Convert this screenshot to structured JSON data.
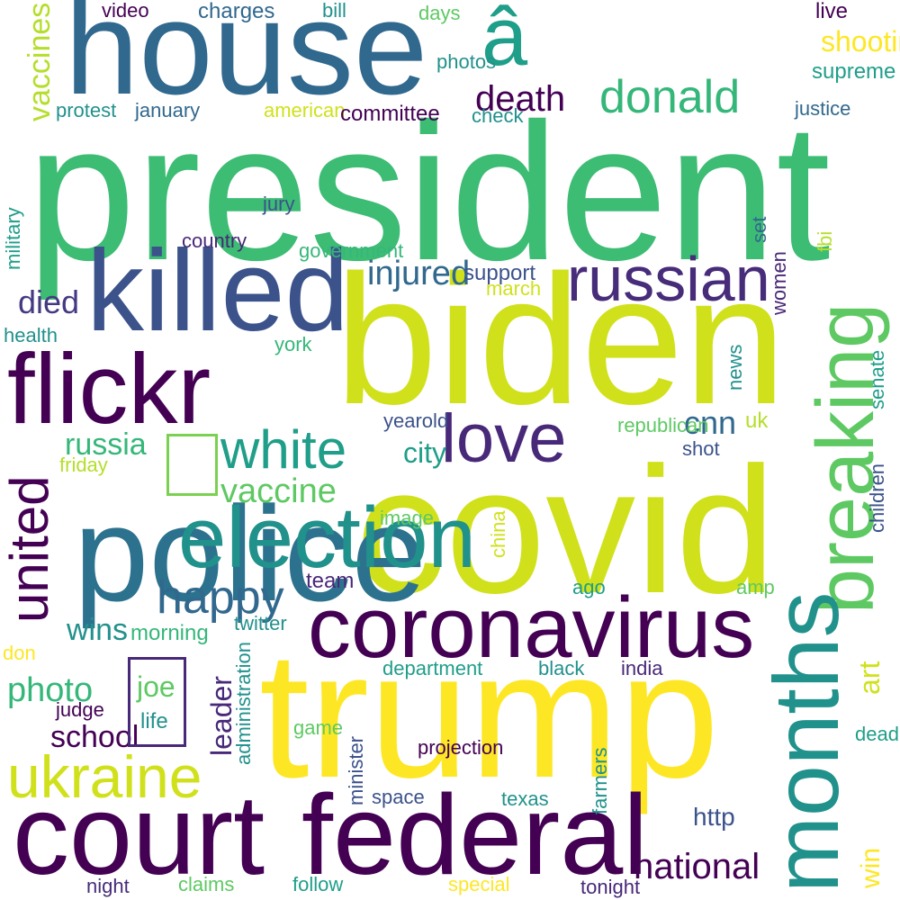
{
  "words": [
    {
      "text": "president",
      "color": "#3dbc74"
    },
    {
      "text": "biden",
      "color": "#d0e11c"
    },
    {
      "text": "covid",
      "color": "#d0e11c"
    },
    {
      "text": "trump",
      "color": "#fde725"
    },
    {
      "text": "house",
      "color": "#31688e"
    },
    {
      "text": "court",
      "color": "#440154"
    },
    {
      "text": "federal",
      "color": "#440154"
    },
    {
      "text": "coronavirus",
      "color": "#440154"
    },
    {
      "text": "killed",
      "color": "#3b528b"
    },
    {
      "text": "flickr",
      "color": "#440154"
    },
    {
      "text": "police",
      "color": "#2c728e"
    },
    {
      "text": "â",
      "color": "#1f9e89"
    },
    {
      "text": "election",
      "color": "#21918c"
    },
    {
      "text": "ukraine",
      "color": "#d0e11c"
    },
    {
      "text": "love",
      "color": "#482878"
    },
    {
      "text": "russian",
      "color": "#472c7a"
    },
    {
      "text": "white",
      "color": "#1f9e89"
    },
    {
      "text": "donald",
      "color": "#35b779"
    },
    {
      "text": "happy",
      "color": "#31688e"
    },
    {
      "text": "vaccine",
      "color": "#5ec962"
    },
    {
      "text": "russia",
      "color": "#35b779"
    },
    {
      "text": "photo",
      "color": "#35b779"
    },
    {
      "text": "national",
      "color": "#440154"
    },
    {
      "text": "death",
      "color": "#440154"
    },
    {
      "text": "injured",
      "color": "#31688e"
    },
    {
      "text": "shooting",
      "color": "#fde725"
    },
    {
      "text": "cnn",
      "color": "#31688e"
    },
    {
      "text": "wins",
      "color": "#21918c"
    },
    {
      "text": "school",
      "color": "#440154"
    },
    {
      "text": "died",
      "color": "#443a83"
    },
    {
      "text": "joe",
      "color": "#5ec962"
    },
    {
      "text": "city",
      "color": "#1f9e89"
    },
    {
      "text": "life",
      "color": "#21918c"
    },
    {
      "text": "http",
      "color": "#3b528b"
    },
    {
      "text": "live",
      "color": "#440154"
    },
    {
      "text": "supreme",
      "color": "#1f9e89"
    },
    {
      "text": "video",
      "color": "#440154"
    },
    {
      "text": "charges",
      "color": "#31688e"
    },
    {
      "text": "bill",
      "color": "#21918c"
    },
    {
      "text": "days",
      "color": "#5ec962"
    },
    {
      "text": "photos",
      "color": "#21918c"
    },
    {
      "text": "protest",
      "color": "#21918c"
    },
    {
      "text": "january",
      "color": "#31688e"
    },
    {
      "text": "american",
      "color": "#d0e11c"
    },
    {
      "text": "committee",
      "color": "#440154"
    },
    {
      "text": "check",
      "color": "#21918c"
    },
    {
      "text": "justice",
      "color": "#31688e"
    },
    {
      "text": "jury",
      "color": "#3b528b"
    },
    {
      "text": "country",
      "color": "#482878"
    },
    {
      "text": "government",
      "color": "#35b779"
    },
    {
      "text": "support",
      "color": "#3b528b"
    },
    {
      "text": "march",
      "color": "#d0e11c"
    },
    {
      "text": "health",
      "color": "#21918c"
    },
    {
      "text": "york",
      "color": "#35b779"
    },
    {
      "text": "yearold",
      "color": "#3b528b"
    },
    {
      "text": "republican",
      "color": "#5ec962"
    },
    {
      "text": "uk",
      "color": "#b5de2b"
    },
    {
      "text": "shot",
      "color": "#3b528b"
    },
    {
      "text": "friday",
      "color": "#b5de2b"
    },
    {
      "text": "image",
      "color": "#5ec962"
    },
    {
      "text": "team",
      "color": "#482878"
    },
    {
      "text": "ago",
      "color": "#1f9e89"
    },
    {
      "text": "amp",
      "color": "#5ec962"
    },
    {
      "text": "morning",
      "color": "#35b779"
    },
    {
      "text": "twitter",
      "color": "#21918c"
    },
    {
      "text": "don",
      "color": "#fde725"
    },
    {
      "text": "department",
      "color": "#1f9e89"
    },
    {
      "text": "black",
      "color": "#21918c"
    },
    {
      "text": "india",
      "color": "#482878"
    },
    {
      "text": "judge",
      "color": "#440154"
    },
    {
      "text": "game",
      "color": "#5ec962"
    },
    {
      "text": "projection",
      "color": "#440154"
    },
    {
      "text": "dead",
      "color": "#1f9e89"
    },
    {
      "text": "space",
      "color": "#3b528b"
    },
    {
      "text": "texas",
      "color": "#21918c"
    },
    {
      "text": "night",
      "color": "#472c7a"
    },
    {
      "text": "claims",
      "color": "#5ec962"
    },
    {
      "text": "follow",
      "color": "#1f9e89"
    },
    {
      "text": "special",
      "color": "#fde725"
    },
    {
      "text": "tonight",
      "color": "#482878"
    },
    {
      "text": "breaking",
      "color": "#5ec962"
    },
    {
      "text": "months",
      "color": "#21918c"
    },
    {
      "text": "united",
      "color": "#440154"
    },
    {
      "text": "vaccines",
      "color": "#b5de2b"
    },
    {
      "text": "leader",
      "color": "#482878"
    },
    {
      "text": "art",
      "color": "#d0e11c"
    },
    {
      "text": "win",
      "color": "#fde725"
    },
    {
      "text": "set",
      "color": "#31688e"
    },
    {
      "text": "fbi",
      "color": "#b5de2b"
    },
    {
      "text": "military",
      "color": "#1f9e89"
    },
    {
      "text": "women",
      "color": "#482878"
    },
    {
      "text": "news",
      "color": "#21918c"
    },
    {
      "text": "senate",
      "color": "#1f9e89"
    },
    {
      "text": "children",
      "color": "#3b528b"
    },
    {
      "text": "china",
      "color": "#d0e11c"
    },
    {
      "text": "administration",
      "color": "#21918c"
    },
    {
      "text": "minister",
      "color": "#3b528b"
    },
    {
      "text": "farmers",
      "color": "#21918c"
    }
  ],
  "boxes": [
    {
      "color": "#7ad151"
    },
    {
      "color": "#482878"
    }
  ]
}
